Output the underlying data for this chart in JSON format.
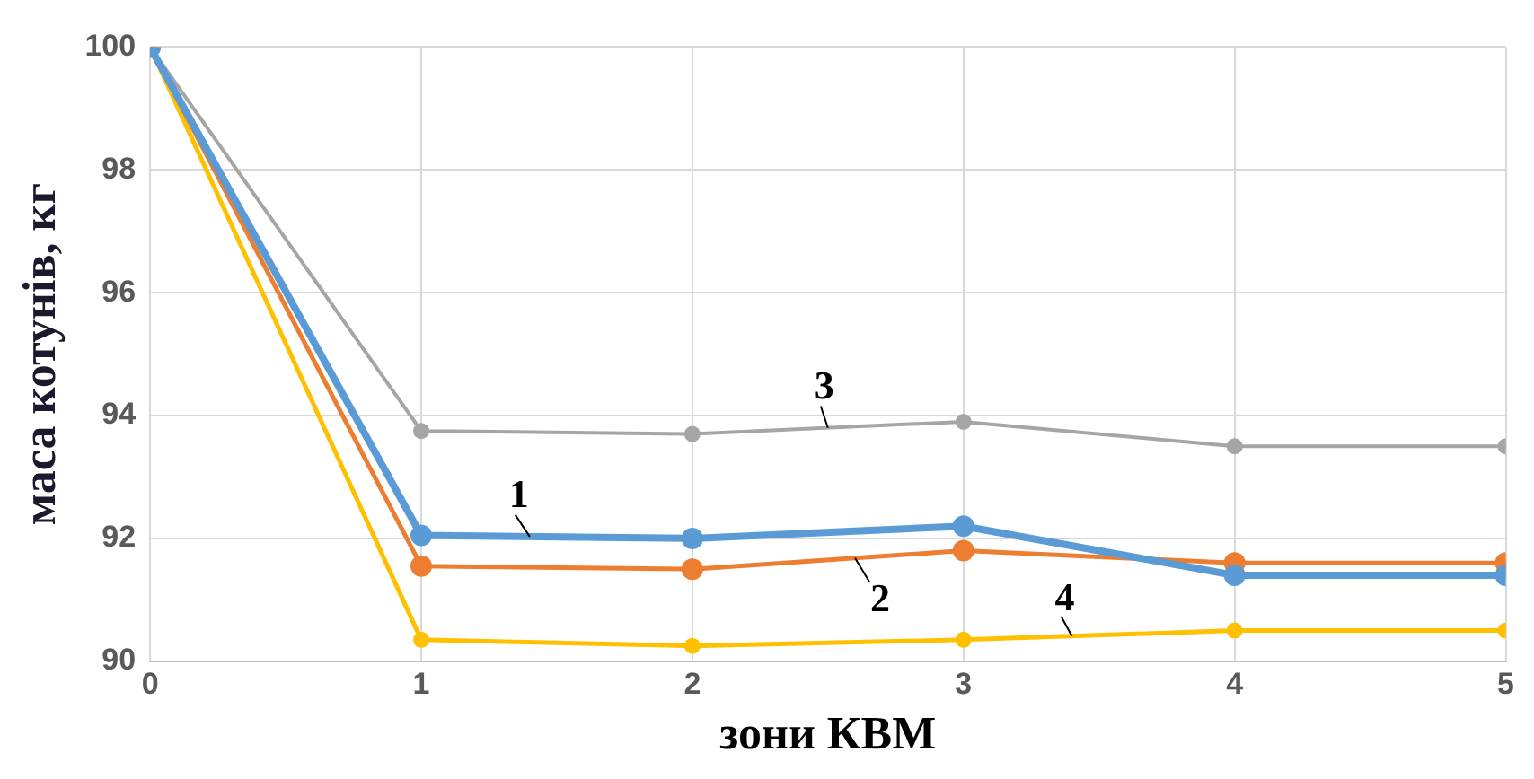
{
  "chart_data": {
    "type": "line",
    "xlabel": "зони КВМ",
    "ylabel": "маса котунів, кг",
    "x": [
      0,
      1,
      2,
      3,
      4,
      5
    ],
    "series": [
      {
        "name": "1",
        "color": "#5b9bd5",
        "values": [
          100,
          92.05,
          92.0,
          92.2,
          91.4,
          91.4
        ]
      },
      {
        "name": "2",
        "color": "#ed7d31",
        "values": [
          100,
          91.55,
          91.5,
          91.8,
          91.6,
          91.6
        ]
      },
      {
        "name": "3",
        "color": "#a5a5a5",
        "values": [
          100,
          93.75,
          93.7,
          93.9,
          93.5,
          93.5
        ]
      },
      {
        "name": "4",
        "color": "#ffc000",
        "values": [
          100,
          90.35,
          90.25,
          90.35,
          90.5,
          90.5
        ]
      }
    ],
    "xlim": [
      0,
      5
    ],
    "xticks": [
      0,
      1,
      2,
      3,
      4,
      5
    ],
    "ylim": [
      90,
      100
    ],
    "yticks": [
      90,
      92,
      94,
      96,
      98,
      100
    ],
    "grid": true,
    "legend": false,
    "marker": "circle",
    "line_style": "solid"
  }
}
